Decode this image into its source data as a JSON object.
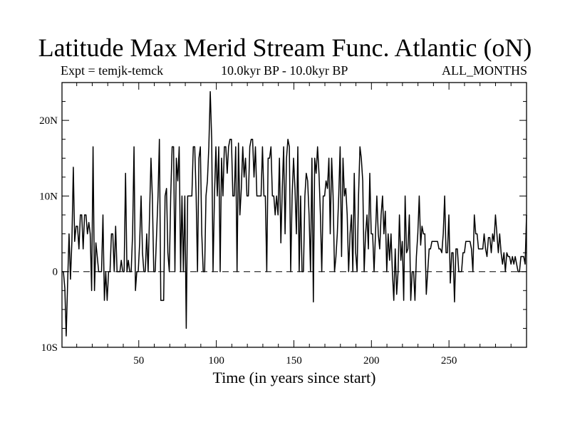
{
  "chart_data": {
    "type": "line",
    "title": "Latitude Max Merid Stream Func. Atlantic (oN)",
    "subtitle_left": "Expt = temjk-temck",
    "subtitle_center": "10.0kyr BP - 10.0kyr BP",
    "subtitle_right": "ALL_MONTHS",
    "xlabel": "Time (in years since start)",
    "ylabel": "",
    "xlim": [
      0.5,
      300
    ],
    "ylim": [
      -10,
      25
    ],
    "x_ticks": [
      50,
      100,
      150,
      200,
      250
    ],
    "x_tick_labels": [
      "50",
      "100",
      "150",
      "200",
      "250"
    ],
    "y_ticks": [
      -10,
      0,
      10,
      20
    ],
    "y_tick_labels": [
      "10S",
      "0",
      "10N",
      "20N"
    ],
    "zero_line": "dashed",
    "grid": false,
    "series": [
      {
        "values": [
          0,
          0,
          -2.2,
          -8.5,
          -1.5,
          5,
          -1,
          4,
          13.8,
          4,
          6,
          6,
          3,
          7.5,
          7.5,
          3,
          7.5,
          7.5,
          5,
          6.5,
          5,
          -2.5,
          16.5,
          -2.5,
          3.8,
          2,
          0,
          0,
          0,
          7.5,
          -3.8,
          0,
          -3.8,
          0,
          0,
          5,
          5,
          0,
          6,
          0,
          0,
          0,
          1.5,
          0,
          0,
          13,
          0,
          1.5,
          0,
          0,
          5,
          16.5,
          -2.5,
          0,
          0,
          3.8,
          10,
          2.5,
          0,
          0,
          5,
          0,
          7.5,
          15,
          10,
          0,
          0,
          5,
          10,
          17.5,
          -3.8,
          -3.8,
          -3.8,
          10,
          11,
          2.5,
          0,
          10,
          16.5,
          16.5,
          0,
          15,
          12,
          16.5,
          0,
          10,
          0,
          10,
          -7.5,
          10,
          10,
          10,
          10,
          16.5,
          16.5,
          10,
          0,
          15,
          16.5,
          5,
          0,
          0,
          10,
          12,
          16.5,
          23.8,
          17.5,
          0,
          10,
          16.5,
          10,
          16.5,
          0,
          15,
          10,
          16.5,
          16.5,
          13,
          16.5,
          17.5,
          17.5,
          10,
          10,
          16.5,
          0,
          17,
          7.5,
          11,
          16.5,
          12.5,
          15,
          10,
          10,
          16.5,
          17.5,
          17.5,
          12.5,
          16.5,
          10,
          10,
          10,
          10,
          16.5,
          10,
          10,
          0,
          15,
          15,
          16.5,
          10,
          10,
          7.5,
          10,
          7.5,
          15,
          3.8,
          11,
          16.5,
          5,
          15,
          17.5,
          16.5,
          0,
          10,
          15,
          11,
          5,
          16.5,
          0,
          10,
          0,
          0,
          10,
          13,
          12,
          7.5,
          0,
          15,
          -4,
          15,
          13,
          16.5,
          13,
          7.5,
          0,
          10,
          10,
          12,
          11,
          15,
          5,
          15,
          10,
          0,
          2,
          5,
          10,
          16.5,
          2,
          15,
          10,
          11,
          7.5,
          0,
          5,
          7.5,
          0,
          13,
          2.5,
          0,
          10,
          16.5,
          15,
          12,
          0,
          5,
          7.5,
          3,
          13,
          5,
          5,
          0,
          5,
          10,
          5,
          3,
          7.5,
          10,
          5,
          8,
          0,
          5,
          1.5,
          5,
          0,
          -3.8,
          3,
          -3,
          0,
          7.5,
          1.5,
          4,
          -3.8,
          10,
          2.5,
          3,
          7.5,
          -3.8,
          0,
          0,
          -3.8,
          2,
          5,
          10,
          3.5,
          6,
          5,
          5,
          -3,
          0,
          3,
          3,
          4,
          4,
          4,
          4,
          4,
          3,
          3,
          2.5,
          5,
          10,
          2.5,
          2.5,
          7.5,
          -1.5,
          2.5,
          2.5,
          -4,
          3,
          3,
          0,
          0,
          0,
          2.5,
          2.5,
          4,
          4,
          4,
          4,
          3,
          0,
          7.5,
          5,
          5,
          3,
          3,
          3,
          3,
          5,
          3,
          2,
          4.5,
          4.5,
          2.5,
          5,
          4,
          7.5,
          5,
          2.5,
          5,
          2.5,
          1,
          2.5,
          0,
          2.5,
          2,
          2,
          1,
          2,
          1,
          2,
          1,
          0,
          0,
          2,
          2,
          2,
          1,
          7.5
        ]
      }
    ]
  }
}
